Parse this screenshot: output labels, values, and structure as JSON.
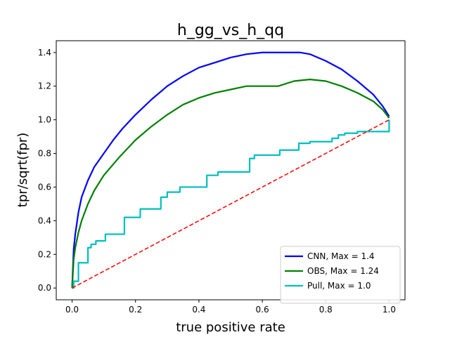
{
  "chart_data": {
    "type": "line",
    "title": "h_gg_vs_h_qq",
    "xlabel": "true positive rate",
    "ylabel": "tpr/sqrt(fpr)",
    "xlim": [
      -0.05,
      1.05
    ],
    "ylim": [
      -0.07,
      1.47
    ],
    "x_ticks": [
      0.0,
      0.2,
      0.4,
      0.6,
      0.8,
      1.0
    ],
    "x_tick_labels": [
      "0.0",
      "0.2",
      "0.4",
      "0.6",
      "0.8",
      "1.0"
    ],
    "y_ticks": [
      0.0,
      0.2,
      0.4,
      0.6,
      0.8,
      1.0,
      1.2,
      1.4
    ],
    "y_tick_labels": [
      "0.0",
      "0.2",
      "0.4",
      "0.6",
      "0.8",
      "1.0",
      "1.2",
      "1.4"
    ],
    "grid": false,
    "legend_position": "lower-right",
    "series": [
      {
        "name": "CNN, Max = 1.4",
        "color": "#0000ff",
        "style": "solid",
        "x": [
          0.0,
          0.005,
          0.01,
          0.02,
          0.03,
          0.05,
          0.07,
          0.1,
          0.13,
          0.16,
          0.2,
          0.25,
          0.3,
          0.35,
          0.4,
          0.45,
          0.5,
          0.55,
          0.6,
          0.65,
          0.7,
          0.72,
          0.75,
          0.8,
          0.85,
          0.9,
          0.95,
          0.98,
          1.0
        ],
        "y": [
          0.0,
          0.23,
          0.32,
          0.45,
          0.54,
          0.64,
          0.72,
          0.8,
          0.88,
          0.95,
          1.03,
          1.12,
          1.2,
          1.26,
          1.31,
          1.34,
          1.37,
          1.39,
          1.4,
          1.4,
          1.4,
          1.4,
          1.39,
          1.35,
          1.3,
          1.23,
          1.15,
          1.08,
          1.02
        ]
      },
      {
        "name": "OBS, Max = 1.24",
        "color": "#008000",
        "style": "solid",
        "x": [
          0.0,
          0.005,
          0.01,
          0.02,
          0.03,
          0.05,
          0.07,
          0.1,
          0.15,
          0.2,
          0.25,
          0.3,
          0.35,
          0.4,
          0.45,
          0.5,
          0.55,
          0.6,
          0.65,
          0.7,
          0.75,
          0.8,
          0.85,
          0.9,
          0.95,
          0.98,
          1.0
        ],
        "y": [
          0.0,
          0.17,
          0.24,
          0.33,
          0.4,
          0.5,
          0.58,
          0.67,
          0.78,
          0.88,
          0.96,
          1.03,
          1.09,
          1.13,
          1.16,
          1.18,
          1.2,
          1.2,
          1.2,
          1.23,
          1.24,
          1.23,
          1.2,
          1.16,
          1.11,
          1.06,
          1.01
        ]
      },
      {
        "name": "Pull, Max = 1.0",
        "color": "#00bfbf",
        "style": "step",
        "x": [
          0.0,
          0.005,
          0.02,
          0.05,
          0.06,
          0.075,
          0.105,
          0.165,
          0.175,
          0.215,
          0.28,
          0.3,
          0.34,
          0.425,
          0.46,
          0.56,
          0.575,
          0.625,
          0.655,
          0.715,
          0.75,
          0.79,
          0.82,
          0.84,
          0.86,
          0.9,
          1.0,
          1.0
        ],
        "y": [
          0.0,
          0.04,
          0.15,
          0.24,
          0.26,
          0.28,
          0.32,
          0.42,
          0.42,
          0.47,
          0.54,
          0.57,
          0.6,
          0.67,
          0.69,
          0.77,
          0.79,
          0.79,
          0.82,
          0.86,
          0.87,
          0.87,
          0.89,
          0.91,
          0.92,
          0.93,
          0.93,
          1.0
        ]
      },
      {
        "name": "",
        "color": "#ff0000",
        "style": "dashed",
        "x": [
          0.0,
          1.0
        ],
        "y": [
          0.0,
          1.0
        ]
      }
    ]
  }
}
